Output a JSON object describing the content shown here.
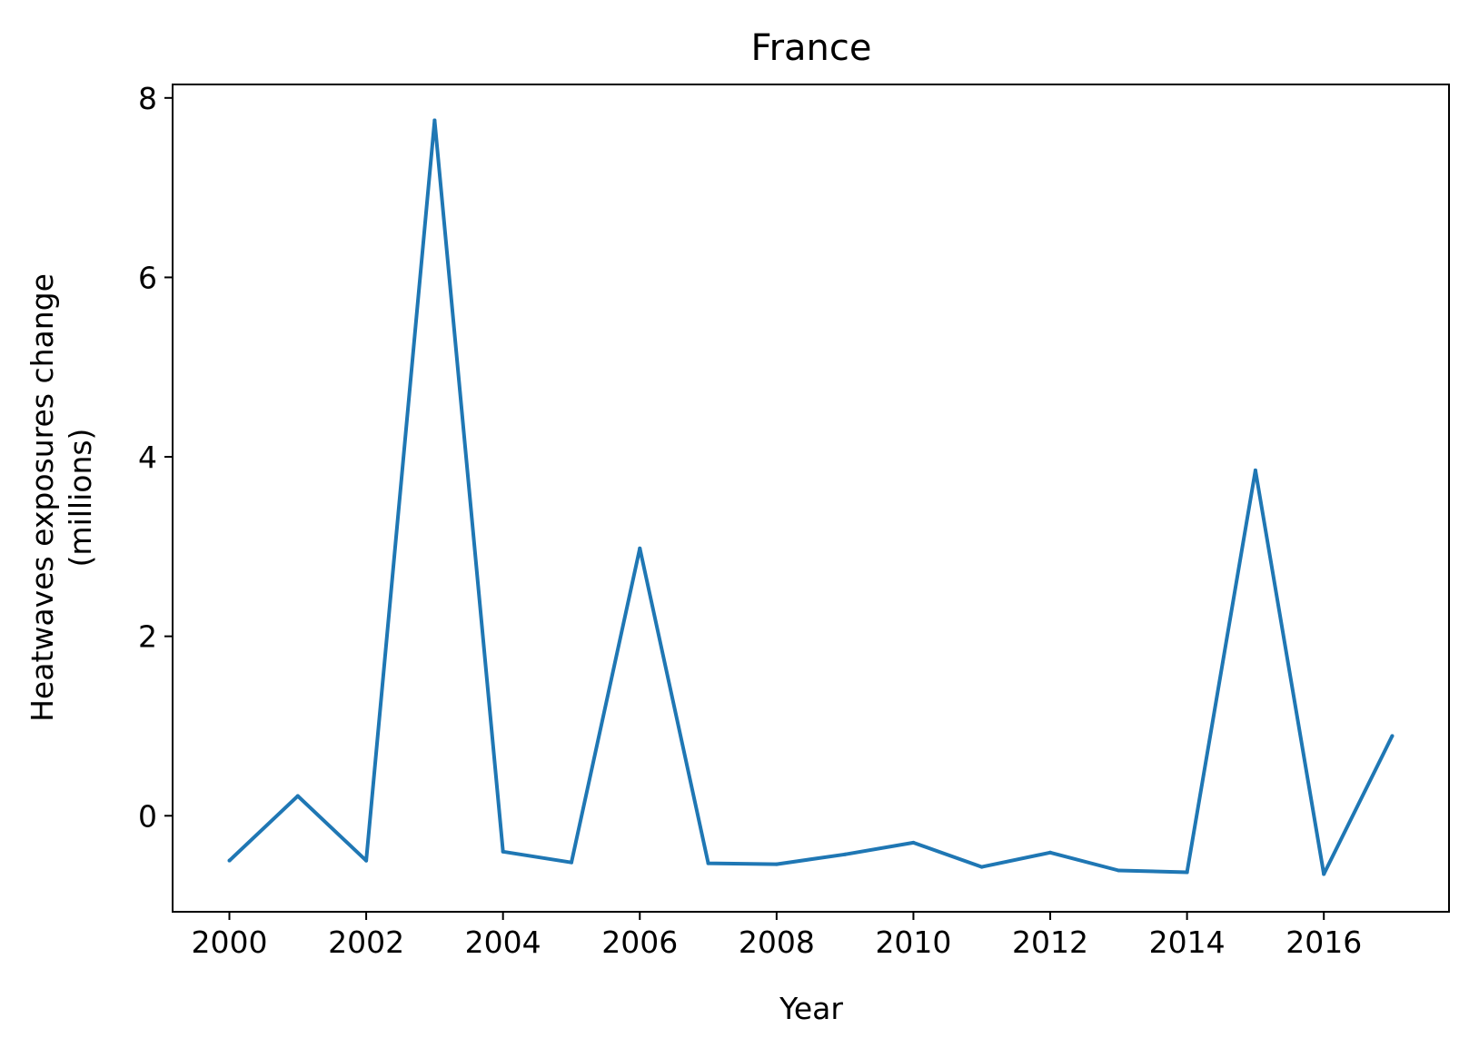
{
  "chart_data": {
    "type": "line",
    "title": "France",
    "xlabel": "Year",
    "ylabel_line1": "Heatwaves exposures change",
    "ylabel_line2": "(millions)",
    "xlim": [
      1999.17,
      2017.83
    ],
    "ylim": [
      -1.07,
      8.15
    ],
    "xticks": [
      2000,
      2002,
      2004,
      2006,
      2008,
      2010,
      2012,
      2014,
      2016
    ],
    "yticks": [
      0,
      2,
      4,
      6,
      8
    ],
    "grid": false,
    "series": [
      {
        "color": "#1f77b4",
        "x": [
          2000,
          2001,
          2002,
          2003,
          2004,
          2005,
          2006,
          2007,
          2008,
          2009,
          2010,
          2011,
          2012,
          2013,
          2014,
          2015,
          2016,
          2017
        ],
        "values": [
          -0.5,
          0.22,
          -0.5,
          7.75,
          -0.4,
          -0.52,
          2.98,
          -0.53,
          -0.54,
          -0.43,
          -0.3,
          -0.57,
          -0.41,
          -0.61,
          -0.63,
          3.85,
          -0.65,
          0.89
        ]
      }
    ]
  }
}
